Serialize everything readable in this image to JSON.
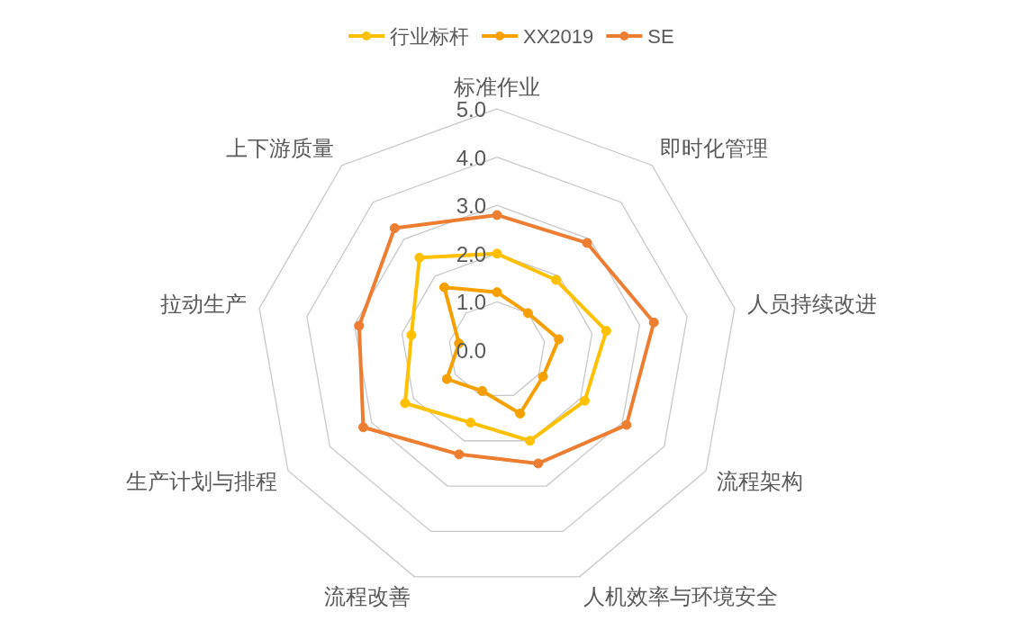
{
  "chart_data": {
    "type": "radar",
    "categories": [
      "标准作业",
      "即时化管理",
      "人员持续改进",
      "流程架构",
      "人机效率与环境安全",
      "流程改善",
      "生产计划与排程",
      "拉动生产",
      "上下游质量"
    ],
    "series": [
      {
        "name": "行业标杆",
        "color": "#ffc000",
        "values": [
          2.0,
          1.9,
          2.3,
          2.1,
          2.0,
          1.6,
          2.2,
          1.8,
          2.5
        ]
      },
      {
        "name": "XX2019",
        "color": "#f5a000",
        "values": [
          1.2,
          1.0,
          1.3,
          1.1,
          1.4,
          0.9,
          1.2,
          0.8,
          1.7
        ]
      },
      {
        "name": "SE",
        "color": "#ed7d31",
        "values": [
          2.8,
          2.9,
          3.3,
          3.1,
          2.5,
          2.3,
          3.2,
          2.9,
          3.3
        ]
      }
    ],
    "ylim": [
      0,
      5
    ],
    "yticks": [
      {
        "value": 0,
        "label": "0.0"
      },
      {
        "value": 1,
        "label": "1.0"
      },
      {
        "value": 2,
        "label": "2.0"
      },
      {
        "value": 3,
        "label": "3.0"
      },
      {
        "value": 4,
        "label": "4.0"
      },
      {
        "value": 5,
        "label": "5.0"
      }
    ],
    "grid": true,
    "legend": "top",
    "marker": "circle"
  }
}
